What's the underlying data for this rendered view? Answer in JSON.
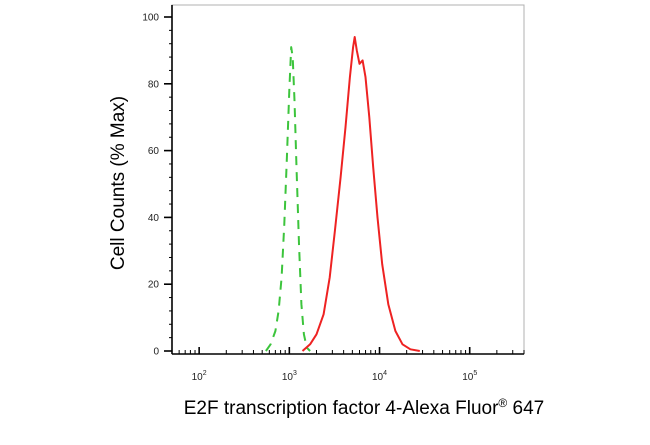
{
  "chart_data": {
    "type": "line",
    "xlabel": "E2F transcription factor 4-Alexa Fluor",
    "xlabel_sup": "®",
    "xlabel_tail": " 647",
    "ylabel": "Cell Counts (% Max)",
    "x_scale": "log",
    "xlim": [
      50,
      400000
    ],
    "ylim": [
      0,
      100
    ],
    "y_ticks": [
      0,
      20,
      40,
      60,
      80,
      100
    ],
    "y_tick_labels": [
      "0",
      "20",
      "40",
      "60",
      "80",
      "100"
    ],
    "x_ticks": [
      100,
      1000,
      10000,
      100000
    ],
    "x_tick_bases": [
      "10",
      "10",
      "10",
      "10"
    ],
    "x_tick_exps": [
      "2",
      "3",
      "4",
      "5"
    ],
    "grid": false,
    "series": [
      {
        "color": "#3cc43c",
        "style": "dashed",
        "points": [
          [
            550,
            0
          ],
          [
            620,
            2
          ],
          [
            700,
            6
          ],
          [
            760,
            12
          ],
          [
            820,
            22
          ],
          [
            880,
            38
          ],
          [
            940,
            58
          ],
          [
            1000,
            78
          ],
          [
            1050,
            91
          ],
          [
            1090,
            88
          ],
          [
            1140,
            75
          ],
          [
            1200,
            55
          ],
          [
            1280,
            32
          ],
          [
            1360,
            14
          ],
          [
            1450,
            5
          ],
          [
            1560,
            1
          ],
          [
            1700,
            0
          ]
        ]
      },
      {
        "color": "#ee2222",
        "style": "solid",
        "points": [
          [
            1400,
            0
          ],
          [
            1700,
            2
          ],
          [
            2000,
            5
          ],
          [
            2400,
            11
          ],
          [
            2800,
            22
          ],
          [
            3200,
            36
          ],
          [
            3700,
            52
          ],
          [
            4200,
            67
          ],
          [
            4700,
            82
          ],
          [
            5100,
            91
          ],
          [
            5300,
            94
          ],
          [
            5600,
            90
          ],
          [
            6000,
            86
          ],
          [
            6500,
            87
          ],
          [
            7000,
            82
          ],
          [
            7700,
            70
          ],
          [
            8500,
            55
          ],
          [
            9500,
            40
          ],
          [
            10700,
            26
          ],
          [
            12500,
            14
          ],
          [
            15000,
            6
          ],
          [
            18000,
            2
          ],
          [
            22000,
            0.5
          ],
          [
            28000,
            0
          ]
        ]
      }
    ]
  }
}
